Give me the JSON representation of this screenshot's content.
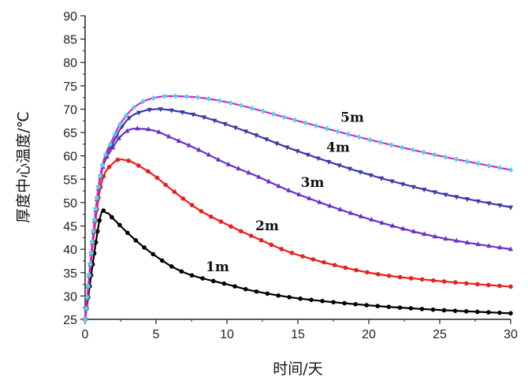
{
  "chart_data": {
    "type": "line",
    "title": "",
    "xlabel": "时间/天",
    "ylabel": "厚度中心温度/℃",
    "xlim": [
      0,
      30
    ],
    "ylim": [
      25,
      90
    ],
    "x_ticks": [
      "0",
      "5",
      "10",
      "15",
      "20",
      "25",
      "30"
    ],
    "y_ticks": [
      "25",
      "30",
      "35",
      "40",
      "45",
      "50",
      "55",
      "60",
      "65",
      "70",
      "75",
      "80",
      "85",
      "90"
    ],
    "grid": false,
    "legend": "none",
    "series": [
      {
        "name": "1m",
        "color": "#000000",
        "marker": "circle",
        "x": [
          0,
          1,
          1.5,
          2,
          3,
          4,
          5,
          6,
          7,
          8,
          10,
          12,
          15,
          20,
          25,
          30
        ],
        "y": [
          25,
          46,
          47.8,
          46.5,
          43.5,
          40.8,
          38.5,
          36.5,
          35,
          34,
          32.5,
          31,
          29.5,
          28,
          27,
          26.3
        ]
      },
      {
        "name": "2m",
        "color": "#e8201e",
        "marker": "circle",
        "x": [
          0,
          1,
          2,
          3,
          4,
          5,
          6,
          8,
          10,
          12,
          15,
          20,
          25,
          30
        ],
        "y": [
          25,
          52,
          58.5,
          59,
          57.5,
          55.5,
          53,
          48.5,
          45.3,
          42.5,
          38.8,
          35,
          33.2,
          32
        ]
      },
      {
        "name": "3m",
        "color": "#6a30c8",
        "marker": "triangle-up",
        "x": [
          0,
          1,
          2,
          3,
          4,
          5,
          6,
          8,
          10,
          12,
          15,
          20,
          25,
          30
        ],
        "y": [
          25,
          54,
          62,
          65.4,
          65.8,
          65.3,
          64,
          61.3,
          58.3,
          55.8,
          51.8,
          46.5,
          42.5,
          40
        ]
      },
      {
        "name": "4m",
        "color": "#3a3aa8",
        "marker": "triangle-down",
        "x": [
          0,
          1,
          2,
          3,
          4,
          5,
          6,
          8,
          10,
          12,
          15,
          20,
          25,
          30
        ],
        "y": [
          25,
          54.5,
          63,
          67.8,
          69.5,
          70,
          69.8,
          68.6,
          66.7,
          64.5,
          61,
          56,
          52,
          49
        ]
      },
      {
        "name": "5m",
        "color": "#e020c8",
        "marker": "diamond",
        "marker_color": "#4fd4e8",
        "x": [
          0,
          1,
          2,
          3,
          4,
          5,
          6,
          8,
          10,
          12,
          15,
          20,
          25,
          30
        ],
        "y": [
          25,
          54.5,
          64,
          69,
          71.5,
          72.5,
          72.8,
          72.5,
          71.5,
          70,
          67.5,
          63.5,
          60,
          57
        ]
      }
    ],
    "annotations": [
      {
        "text": "1m",
        "series": "1m"
      },
      {
        "text": "2m",
        "series": "2m"
      },
      {
        "text": "3m",
        "series": "3m"
      },
      {
        "text": "4m",
        "series": "4m"
      },
      {
        "text": "5m",
        "series": "5m"
      }
    ]
  }
}
